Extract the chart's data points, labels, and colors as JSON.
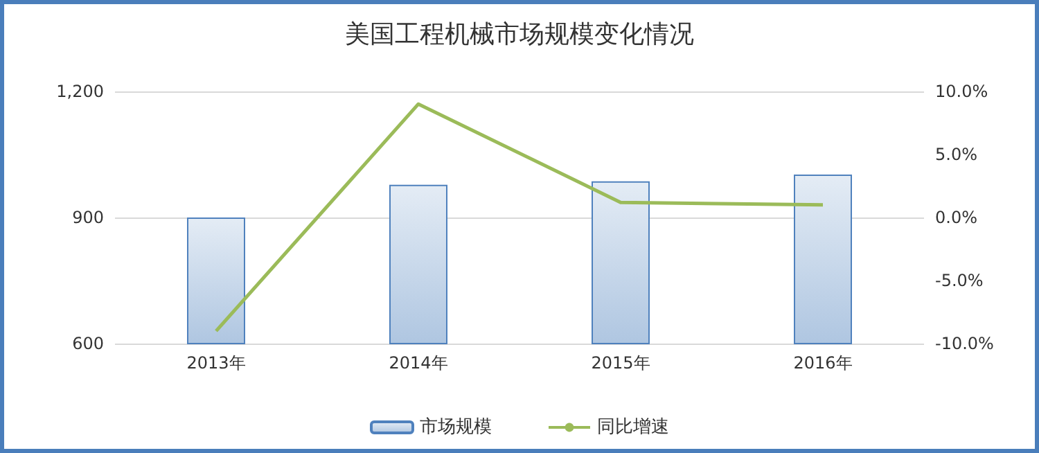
{
  "chart_data": {
    "type": "bar",
    "title": "美国工程机械市场规模变化情况",
    "categories": [
      "2013年",
      "2014年",
      "2015年",
      "2016年"
    ],
    "series": [
      {
        "name": "市场规模",
        "color": "#4f81bd",
        "values": [
          900,
          978,
          986,
          1002
        ]
      },
      {
        "name": "同比增速",
        "type": "line",
        "axis": "y2",
        "color": "#9bbb59",
        "values": [
          -9.0,
          9.0,
          1.2,
          1.0
        ]
      }
    ],
    "ylim": [
      600,
      1200
    ],
    "yticks": [
      {
        "value": 600,
        "label": "600"
      },
      {
        "value": 900,
        "label": "900"
      },
      {
        "value": 1200,
        "label": "1,200"
      }
    ],
    "y2lim": [
      -10,
      10
    ],
    "y2ticks": [
      {
        "value": -10,
        "label": "-10.0%"
      },
      {
        "value": -5,
        "label": "-5.0%"
      },
      {
        "value": 0,
        "label": "0.0%"
      },
      {
        "value": 5,
        "label": "5.0%"
      },
      {
        "value": 10,
        "label": "10.0%"
      }
    ],
    "grid": "y",
    "legend": "bottom",
    "marker": "none",
    "line_style": "solid"
  }
}
